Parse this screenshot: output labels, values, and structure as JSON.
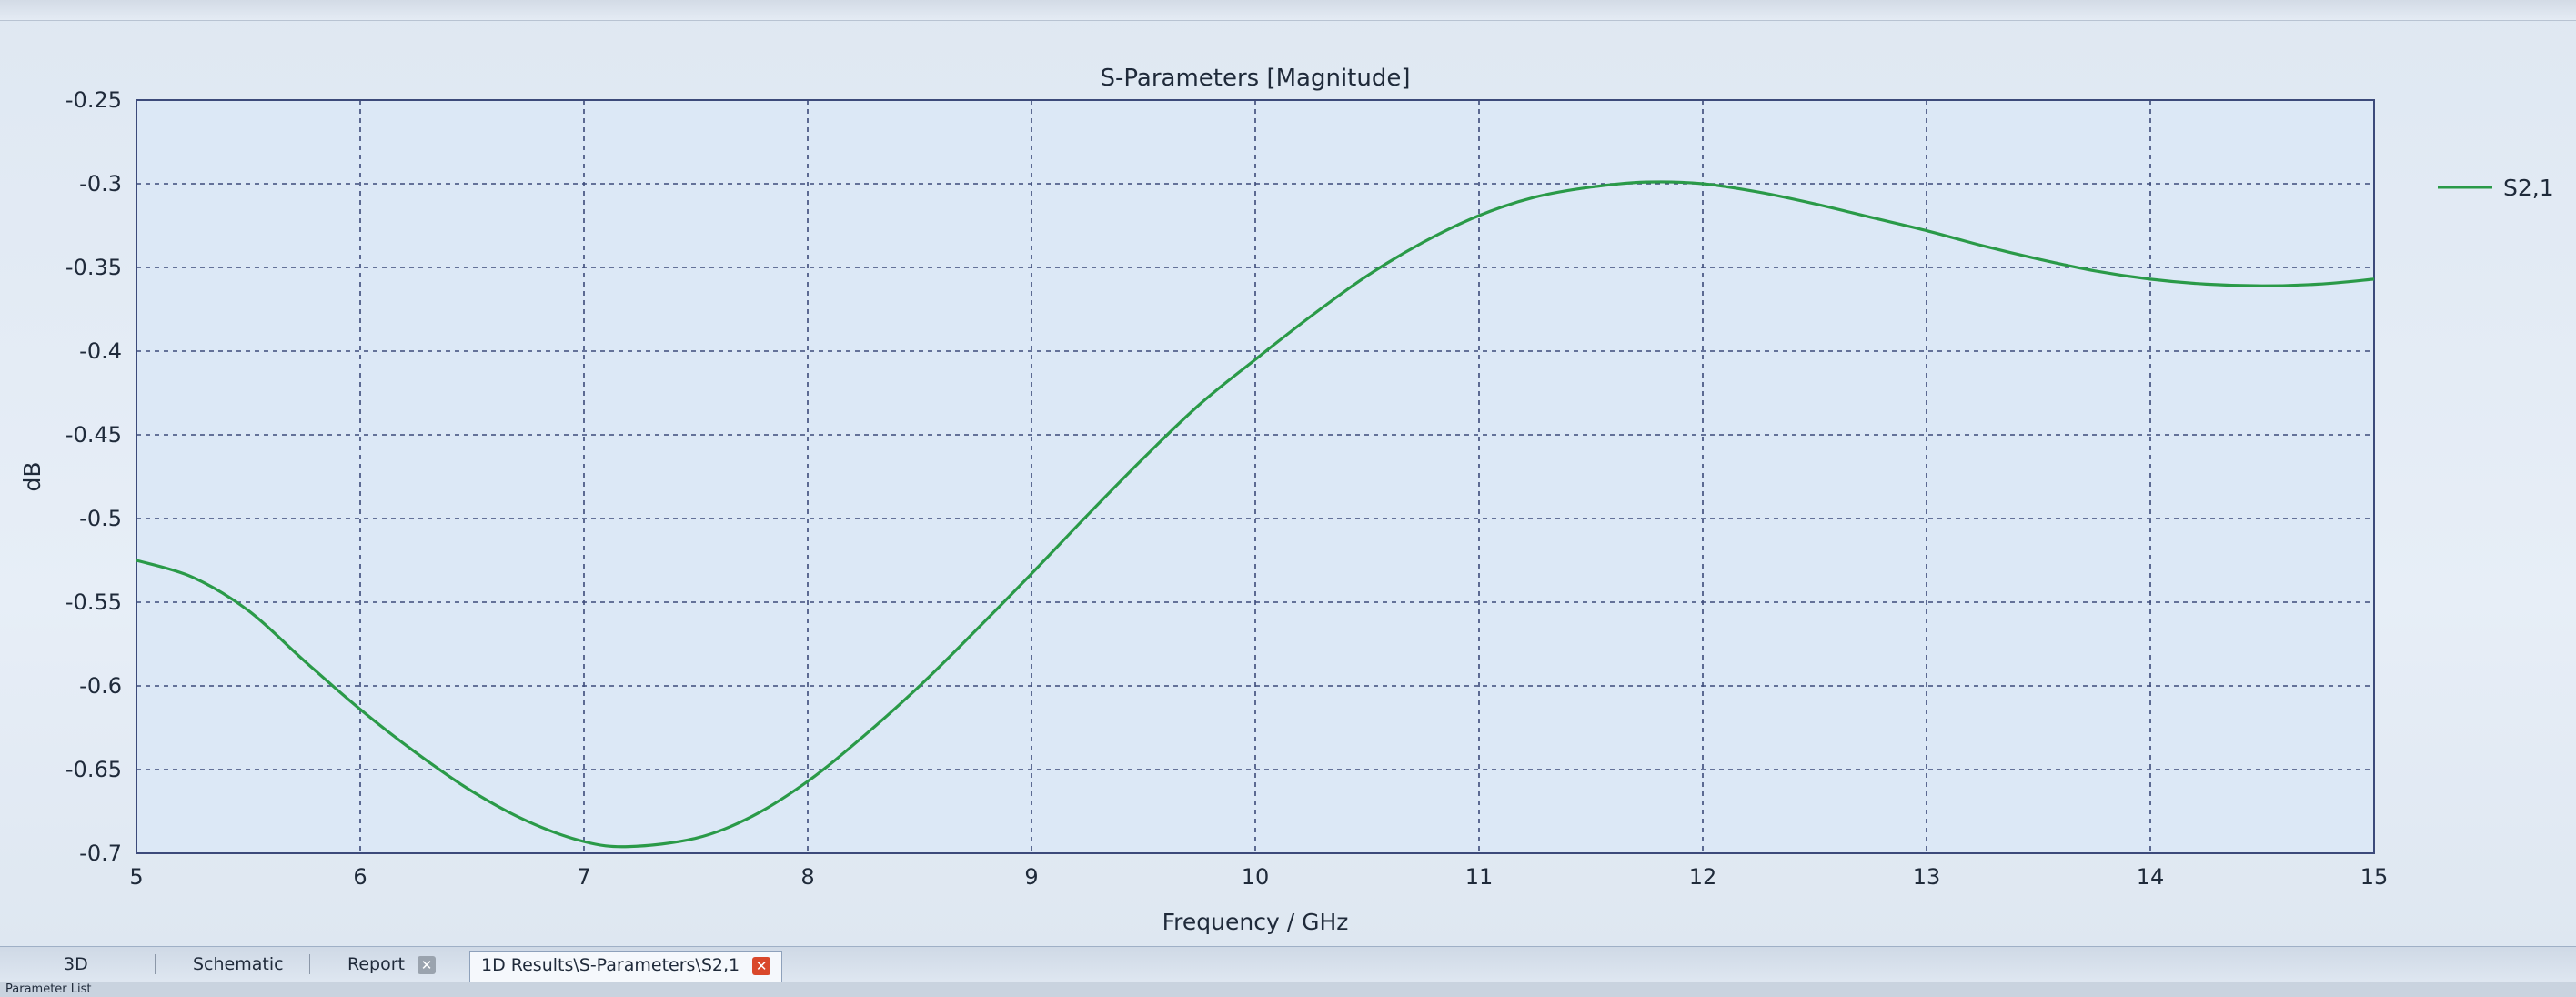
{
  "chart_data": {
    "type": "line",
    "title": "S-Parameters [Magnitude]",
    "xlabel": "Frequency / GHz",
    "ylabel": "dB",
    "xlim": [
      5,
      15
    ],
    "ylim": [
      -0.7,
      -0.25
    ],
    "x_ticks": [
      5,
      6,
      7,
      8,
      9,
      10,
      11,
      12,
      13,
      14,
      15
    ],
    "y_ticks": [
      -0.25,
      -0.3,
      -0.35,
      -0.4,
      -0.45,
      -0.5,
      -0.55,
      -0.6,
      -0.65,
      -0.7
    ],
    "y_tick_labels": [
      "-0.25",
      "-0.3",
      "-0.35",
      "-0.4",
      "-0.45",
      "-0.5",
      "-0.55",
      "-0.6",
      "-0.65",
      "-0.7"
    ],
    "grid": true,
    "legend_position": "right",
    "series": [
      {
        "name": "S2,1",
        "color": "#2a9a48",
        "x": [
          5,
          5.25,
          5.5,
          5.75,
          6,
          6.25,
          6.5,
          6.75,
          7,
          7.2,
          7.5,
          7.75,
          8,
          8.25,
          8.5,
          8.75,
          9,
          9.25,
          9.5,
          9.75,
          10,
          10.25,
          10.5,
          10.75,
          11,
          11.25,
          11.5,
          11.75,
          12,
          12.25,
          12.5,
          12.75,
          13,
          13.25,
          13.5,
          13.75,
          14,
          14.25,
          14.5,
          14.75,
          15
        ],
        "y": [
          -0.525,
          -0.535,
          -0.555,
          -0.585,
          -0.614,
          -0.64,
          -0.663,
          -0.681,
          -0.693,
          -0.696,
          -0.691,
          -0.678,
          -0.657,
          -0.63,
          -0.6,
          -0.567,
          -0.533,
          -0.498,
          -0.464,
          -0.432,
          -0.405,
          -0.379,
          -0.355,
          -0.335,
          -0.319,
          -0.308,
          -0.302,
          -0.299,
          -0.3,
          -0.305,
          -0.312,
          -0.32,
          -0.328,
          -0.337,
          -0.345,
          -0.352,
          -0.357,
          -0.36,
          -0.361,
          -0.36,
          -0.357
        ]
      }
    ]
  },
  "tabs": [
    {
      "label": "3D"
    },
    {
      "label": "Schematic"
    },
    {
      "label": "Report"
    },
    {
      "label": "1D Results\\S-Parameters\\S2,1"
    }
  ],
  "status": {
    "text": "Parameter List"
  }
}
